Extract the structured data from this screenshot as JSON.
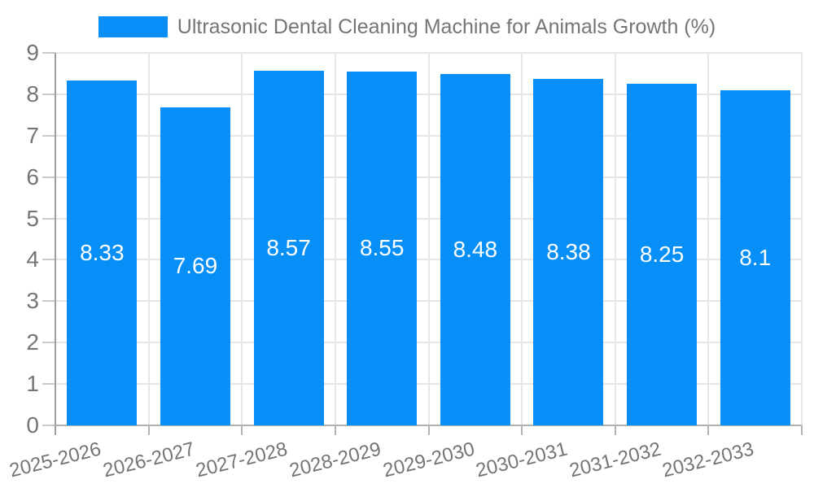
{
  "chart_data": {
    "type": "bar",
    "title": "Ultrasonic Dental Cleaning Machine for Animals Growth (%)",
    "categories": [
      "2025-2026",
      "2026-2027",
      "2027-2028",
      "2028-2029",
      "2029-2030",
      "2030-2031",
      "2031-2032",
      "2032-2033"
    ],
    "values": [
      8.33,
      7.69,
      8.57,
      8.55,
      8.48,
      8.38,
      8.25,
      8.1
    ],
    "value_labels": [
      "8.33",
      "7.69",
      "8.57",
      "8.55",
      "8.48",
      "8.38",
      "8.25",
      "8.1"
    ],
    "xlabel": "",
    "ylabel": "",
    "ylim": [
      0,
      9
    ],
    "yticks": [
      0,
      1,
      2,
      3,
      4,
      5,
      6,
      7,
      8,
      9
    ],
    "grid": true,
    "legend_position": "top-center",
    "x_label_rotation_deg": -14,
    "colors": {
      "bar": "#0690F7",
      "value_label": "#ffffff",
      "axis_text": "#757575",
      "gridline": "#e6e6e6",
      "axis_line": "#9e9e9e",
      "baseline": "#b0b0b0"
    }
  }
}
